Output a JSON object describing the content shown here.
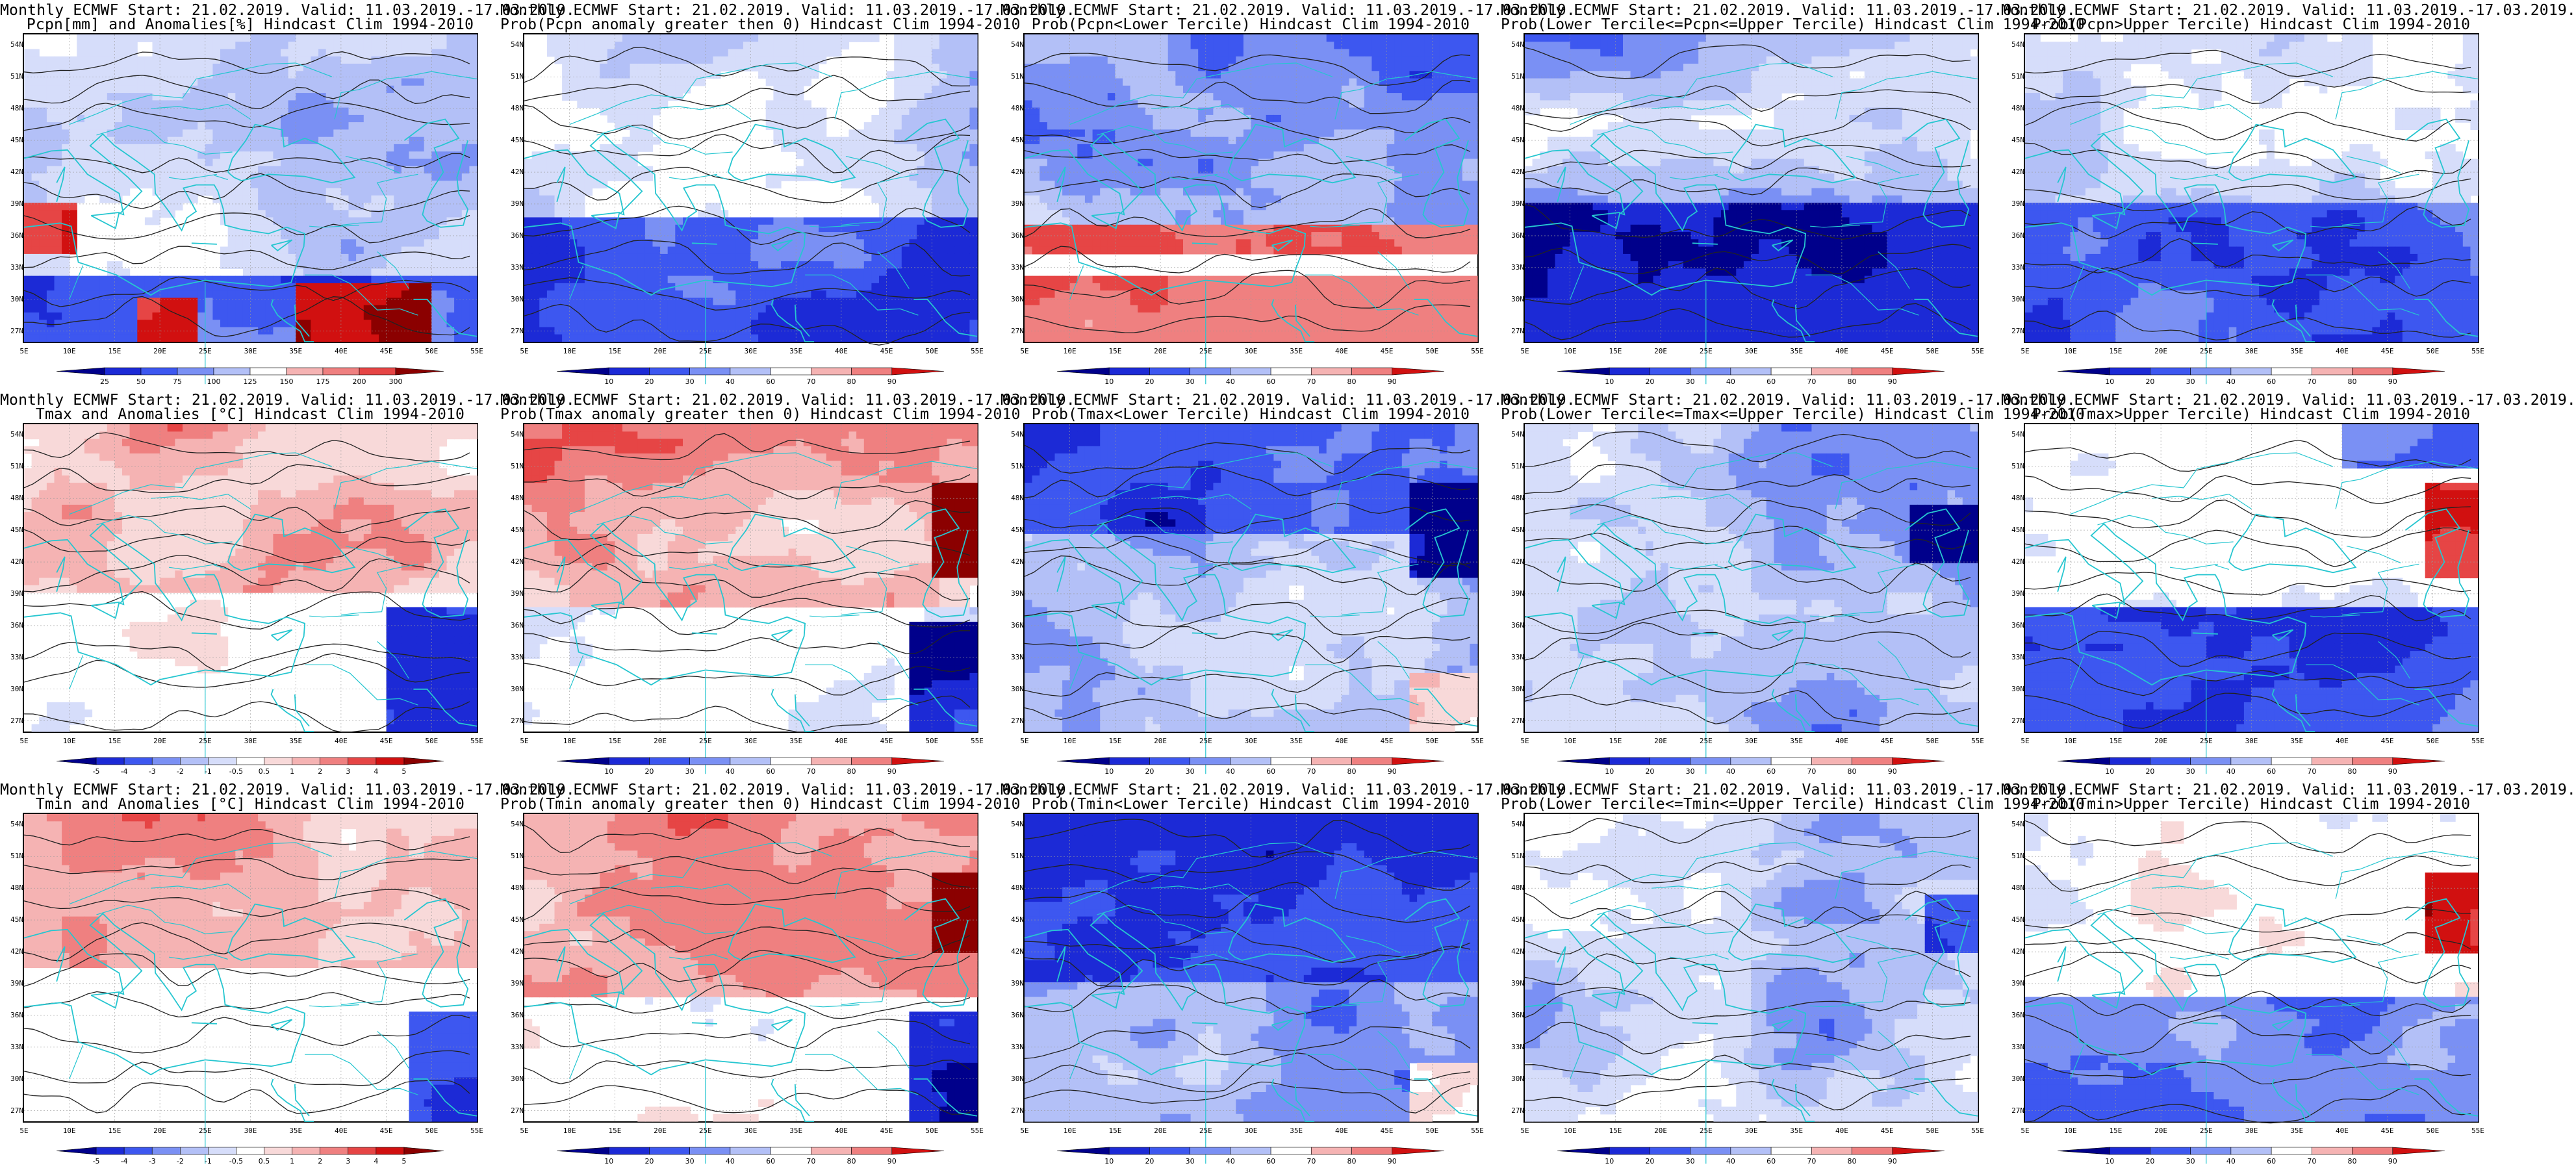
{
  "lat_ticks": [
    "54N",
    "51N",
    "48N",
    "45N",
    "42N",
    "39N",
    "36N",
    "33N",
    "30N",
    "27N"
  ],
  "lon_ticks": [
    "5E",
    "10E",
    "15E",
    "20E",
    "25E",
    "30E",
    "35E",
    "40E",
    "45E",
    "50E",
    "55E"
  ],
  "colors": {
    "coast": "#26c6d0",
    "contour": "#222222",
    "blues": [
      "#00008b",
      "#1c2ad6",
      "#3d57f0",
      "#7a90f4",
      "#b3c0f7",
      "#d6ddfa"
    ],
    "reds": [
      "#f8d9d9",
      "#f5b3b3",
      "#ef8080",
      "#e64545",
      "#d11010",
      "#8b0000"
    ],
    "neutral": "#ffffff"
  },
  "panels": [
    {
      "title1": "Monthly ECMWF Start: 21.02.2019. Valid: 11.03.2019.-17.03.2019.",
      "title2": "Pcpn[mm] and Anomalies[%] Hindcast Clim 1994-2010",
      "pattern": "pcpn_anom",
      "colorbar_labels": [
        "25",
        "50",
        "75",
        "100",
        "125",
        "150",
        "175",
        "200",
        "300"
      ],
      "colorbar_type": "blue_red_9"
    },
    {
      "title1": "Monthly ECMWF Start: 21.02.2019. Valid: 11.03.2019.-17.03.2019.",
      "title2": "Prob(Pcpn anomaly greater then 0) Hindcast Clim 1994-2010",
      "pattern": "pcpn_prob_gt0",
      "colorbar_labels": [
        "10",
        "20",
        "30",
        "40",
        "60",
        "70",
        "80",
        "90"
      ],
      "colorbar_type": "prob"
    },
    {
      "title1": "Monthly ECMWF Start: 21.02.2019. Valid: 11.03.2019.-17.03.2019.",
      "title2": "Prob(Pcpn<Lower Tercile) Hindcast Clim 1994-2010",
      "pattern": "pcpn_lower",
      "colorbar_labels": [
        "10",
        "20",
        "30",
        "40",
        "60",
        "70",
        "80",
        "90"
      ],
      "colorbar_type": "prob"
    },
    {
      "title1": "Monthly ECMWF Start: 21.02.2019. Valid: 11.03.2019.-17.03.2019.",
      "title2": "Prob(Lower Tercile<=Pcpn<=Upper Tercile) Hindcast Clim 1994-2010",
      "pattern": "pcpn_middle",
      "colorbar_labels": [
        "10",
        "20",
        "30",
        "40",
        "60",
        "70",
        "80",
        "90"
      ],
      "colorbar_type": "prob"
    },
    {
      "title1": "Monthly ECMWF Start: 21.02.2019. Valid: 11.03.2019.-17.03.2019.",
      "title2": "Prob(Pcpn>Upper Tercile) Hindcast Clim 1994-2010",
      "pattern": "pcpn_upper",
      "colorbar_labels": [
        "10",
        "20",
        "30",
        "40",
        "60",
        "70",
        "80",
        "90"
      ],
      "colorbar_type": "prob"
    },
    {
      "title1": "Monthly ECMWF Start: 21.02.2019. Valid: 11.03.2019.-17.03.2019.",
      "title2": "Tmax and Anomalies [°C] Hindcast Clim 1994-2010",
      "pattern": "tmax_anom",
      "colorbar_labels": [
        "-5",
        "-4",
        "-3",
        "-2",
        "-1",
        "-0.5",
        "0.5",
        "1",
        "2",
        "3",
        "4",
        "5"
      ],
      "colorbar_type": "anom"
    },
    {
      "title1": "Monthly ECMWF Start: 21.02.2019. Valid: 11.03.2019.-17.03.2019.",
      "title2": "Prob(Tmax anomaly greater then 0) Hindcast Clim 1994-2010",
      "pattern": "tmax_prob_gt0",
      "colorbar_labels": [
        "10",
        "20",
        "30",
        "40",
        "60",
        "70",
        "80",
        "90"
      ],
      "colorbar_type": "prob"
    },
    {
      "title1": "Monthly ECMWF Start: 21.02.2019. Valid: 11.03.2019.-17.03.2019.",
      "title2": "Prob(Tmax<Lower Tercile) Hindcast Clim 1994-2010",
      "pattern": "tmax_lower",
      "colorbar_labels": [
        "10",
        "20",
        "30",
        "40",
        "60",
        "70",
        "80",
        "90"
      ],
      "colorbar_type": "prob"
    },
    {
      "title1": "Monthly ECMWF Start: 21.02.2019. Valid: 11.03.2019.-17.03.2019.",
      "title2": "Prob(Lower Tercile<=Tmax<=Upper Tercile) Hindcast Clim 1994-2010",
      "pattern": "tmax_middle",
      "colorbar_labels": [
        "10",
        "20",
        "30",
        "40",
        "60",
        "70",
        "80",
        "90"
      ],
      "colorbar_type": "prob"
    },
    {
      "title1": "Monthly ECMWF Start: 21.02.2019. Valid: 11.03.2019.-17.03.2019.",
      "title2": "Prob(Tmax>Upper Tercile) Hindcast Clim 1994-2010",
      "pattern": "tmax_upper",
      "colorbar_labels": [
        "10",
        "20",
        "30",
        "40",
        "60",
        "70",
        "80",
        "90"
      ],
      "colorbar_type": "prob"
    },
    {
      "title1": "Monthly ECMWF Start: 21.02.2019. Valid: 11.03.2019.-17.03.2019.",
      "title2": "Tmin and Anomalies [°C] Hindcast Clim 1994-2010",
      "pattern": "tmin_anom",
      "colorbar_labels": [
        "-5",
        "-4",
        "-3",
        "-2",
        "-1",
        "-0.5",
        "0.5",
        "1",
        "2",
        "3",
        "4",
        "5"
      ],
      "colorbar_type": "anom"
    },
    {
      "title1": "Monthly ECMWF Start: 21.02.2019. Valid: 11.03.2019.-17.03.2019.",
      "title2": "Prob(Tmin anomaly greater then 0) Hindcast Clim 1994-2010",
      "pattern": "tmin_prob_gt0",
      "colorbar_labels": [
        "10",
        "20",
        "30",
        "40",
        "60",
        "70",
        "80",
        "90"
      ],
      "colorbar_type": "prob"
    },
    {
      "title1": "Monthly ECMWF Start: 21.02.2019. Valid: 11.03.2019.-17.03.2019.",
      "title2": "Prob(Tmin<Lower Tercile) Hindcast Clim 1994-2010",
      "pattern": "tmin_lower",
      "colorbar_labels": [
        "10",
        "20",
        "30",
        "40",
        "60",
        "70",
        "80",
        "90"
      ],
      "colorbar_type": "prob"
    },
    {
      "title1": "Monthly ECMWF Start: 21.02.2019. Valid: 11.03.2019.-17.03.2019.",
      "title2": "Prob(Lower Tercile<=Tmin<=Upper Tercile) Hindcast Clim 1994-2010",
      "pattern": "tmin_middle",
      "colorbar_labels": [
        "10",
        "20",
        "30",
        "40",
        "60",
        "70",
        "80",
        "90"
      ],
      "colorbar_type": "prob"
    },
    {
      "title1": "Monthly ECMWF Start: 21.02.2019. Valid: 11.03.2019.-17.03.2019.",
      "title2": "Prob(Tmin>Upper Tercile) Hindcast Clim 1994-2010",
      "pattern": "tmin_upper",
      "colorbar_labels": [
        "10",
        "20",
        "30",
        "40",
        "60",
        "70",
        "80",
        "90"
      ],
      "colorbar_type": "prob"
    }
  ]
}
